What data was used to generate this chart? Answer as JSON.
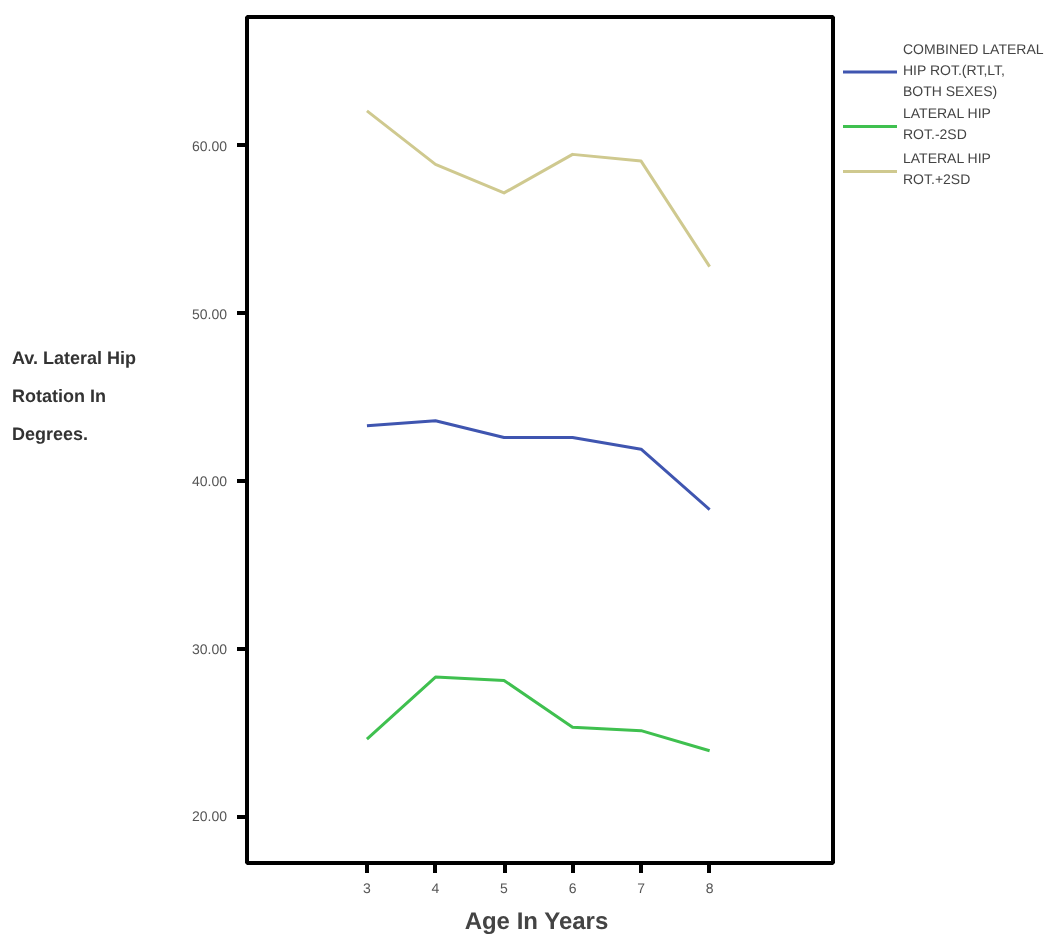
{
  "chart_data": {
    "type": "line",
    "xlabel": "Age In  Years",
    "ylabel": "Av. Lateral Hip Rotation In Degrees.",
    "x": [
      3,
      4,
      5,
      6,
      7,
      8
    ],
    "series": [
      {
        "name": "COMBINED LATERAL HIP ROT.(RT,LT, BOTH SEXES)",
        "color": "#3f55b0",
        "values": [
          43.3,
          43.6,
          42.6,
          42.6,
          41.9,
          38.3
        ]
      },
      {
        "name": "LATERAL HIP ROT.-2SD",
        "color": "#3fc04f",
        "values": [
          24.6,
          28.3,
          28.1,
          25.3,
          25.1,
          23.9
        ]
      },
      {
        "name": "LATERAL HIP ROT.+2SD",
        "color": "#cfc98f",
        "values": [
          62.1,
          58.9,
          57.2,
          59.5,
          59.1,
          52.8
        ]
      }
    ],
    "xlim": [
      1.25,
      9.8
    ],
    "xticks": [
      3,
      4,
      5,
      6,
      7,
      8
    ],
    "ylim": [
      17.2,
      67.7
    ],
    "yticks": [
      {
        "value": 20,
        "label": "20.00"
      },
      {
        "value": 30,
        "label": "30.00"
      },
      {
        "value": 40,
        "label": "40.00"
      },
      {
        "value": 50,
        "label": "50.00"
      },
      {
        "value": 60,
        "label": "60.00"
      }
    ],
    "grid": false,
    "legend": "right",
    "marker": "none",
    "line_style": "solid"
  }
}
